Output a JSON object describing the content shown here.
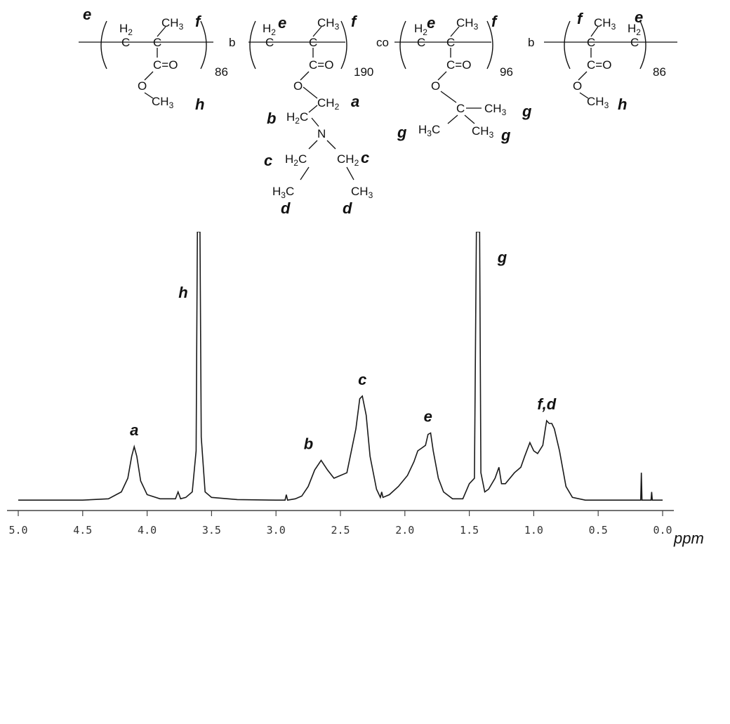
{
  "structure": {
    "link_labels": [
      "b",
      "co",
      "b"
    ],
    "degrees": [
      "86",
      "190",
      "96",
      "86"
    ],
    "atoms": {
      "h2": "H",
      "h2_sub": "2",
      "ch3": "CH",
      "ch3_sub": "3",
      "c": "C",
      "o": "O",
      "n": "N",
      "co_dbl": "C=O",
      "ch2": "CH",
      "ch2_sub": "2",
      "h3c": "H",
      "h3c_sub": "3",
      "h3c_c": "C",
      "h2c": "H",
      "h2c_sub": "2",
      "h2c_c": "C"
    },
    "proton_labels": {
      "a": "a",
      "b": "b",
      "c": "c",
      "d": "d",
      "e": "e",
      "f": "f",
      "g": "g",
      "h": "h"
    }
  },
  "chart_data": {
    "type": "line",
    "x_axis": {
      "range": [
        5.0,
        0.0
      ],
      "reversed": true,
      "tick_values": [
        5.0,
        4.5,
        4.0,
        3.5,
        3.0,
        2.5,
        2.0,
        1.5,
        1.0,
        0.5,
        0.0
      ],
      "tick_labels": [
        "5.0",
        "4.5",
        "4.0",
        "3.5",
        "3.0",
        "2.5",
        "2.0",
        "1.5",
        "1.0",
        "0.5",
        "0.0"
      ],
      "unit_label": "ppm"
    },
    "grid": false,
    "peak_labels": [
      {
        "text": "a",
        "ppm": 4.1
      },
      {
        "text": "h",
        "ppm": 3.6
      },
      {
        "text": "b",
        "ppm": 2.65
      },
      {
        "text": "c",
        "ppm": 2.33
      },
      {
        "text": "e",
        "ppm": 1.82
      },
      {
        "text": "g",
        "ppm": 1.43
      },
      {
        "text": "f,d",
        "ppm": 0.9
      }
    ],
    "series": [
      {
        "points": [
          [
            5.0,
            0.02
          ],
          [
            4.8,
            0.02
          ],
          [
            4.5,
            0.02
          ],
          [
            4.3,
            0.025
          ],
          [
            4.2,
            0.05
          ],
          [
            4.15,
            0.1
          ],
          [
            4.12,
            0.18
          ],
          [
            4.1,
            0.215
          ],
          [
            4.08,
            0.18
          ],
          [
            4.05,
            0.09
          ],
          [
            4.0,
            0.04
          ],
          [
            3.9,
            0.025
          ],
          [
            3.78,
            0.025
          ],
          [
            3.76,
            0.05
          ],
          [
            3.74,
            0.025
          ],
          [
            3.7,
            0.03
          ],
          [
            3.65,
            0.05
          ],
          [
            3.62,
            0.2
          ],
          [
            3.61,
            1.0
          ],
          [
            3.6,
            1.0
          ],
          [
            3.59,
            1.0
          ],
          [
            3.58,
            0.25
          ],
          [
            3.55,
            0.05
          ],
          [
            3.5,
            0.03
          ],
          [
            3.3,
            0.022
          ],
          [
            3.0,
            0.02
          ],
          [
            2.93,
            0.02
          ],
          [
            2.92,
            0.04
          ],
          [
            2.91,
            0.02
          ],
          [
            2.85,
            0.025
          ],
          [
            2.8,
            0.035
          ],
          [
            2.75,
            0.07
          ],
          [
            2.7,
            0.13
          ],
          [
            2.65,
            0.165
          ],
          [
            2.6,
            0.13
          ],
          [
            2.55,
            0.1
          ],
          [
            2.45,
            0.12
          ],
          [
            2.38,
            0.28
          ],
          [
            2.35,
            0.39
          ],
          [
            2.33,
            0.4
          ],
          [
            2.3,
            0.33
          ],
          [
            2.27,
            0.18
          ],
          [
            2.22,
            0.06
          ],
          [
            2.19,
            0.03
          ],
          [
            2.18,
            0.05
          ],
          [
            2.17,
            0.03
          ],
          [
            2.12,
            0.04
          ],
          [
            2.05,
            0.07
          ],
          [
            1.98,
            0.11
          ],
          [
            1.93,
            0.16
          ],
          [
            1.9,
            0.2
          ],
          [
            1.87,
            0.21
          ],
          [
            1.84,
            0.22
          ],
          [
            1.82,
            0.26
          ],
          [
            1.8,
            0.265
          ],
          [
            1.78,
            0.2
          ],
          [
            1.74,
            0.1
          ],
          [
            1.7,
            0.05
          ],
          [
            1.63,
            0.025
          ],
          [
            1.55,
            0.025
          ],
          [
            1.5,
            0.08
          ],
          [
            1.46,
            0.1
          ],
          [
            1.445,
            1.0
          ],
          [
            1.43,
            1.0
          ],
          [
            1.42,
            1.0
          ],
          [
            1.41,
            0.12
          ],
          [
            1.38,
            0.05
          ],
          [
            1.35,
            0.06
          ],
          [
            1.3,
            0.1
          ],
          [
            1.27,
            0.14
          ],
          [
            1.25,
            0.08
          ],
          [
            1.22,
            0.08
          ],
          [
            1.15,
            0.12
          ],
          [
            1.1,
            0.14
          ],
          [
            1.07,
            0.18
          ],
          [
            1.03,
            0.23
          ],
          [
            1.0,
            0.2
          ],
          [
            0.97,
            0.19
          ],
          [
            0.93,
            0.22
          ],
          [
            0.91,
            0.28
          ],
          [
            0.9,
            0.31
          ],
          [
            0.88,
            0.3
          ],
          [
            0.86,
            0.3
          ],
          [
            0.84,
            0.28
          ],
          [
            0.8,
            0.2
          ],
          [
            0.75,
            0.07
          ],
          [
            0.7,
            0.03
          ],
          [
            0.6,
            0.02
          ],
          [
            0.3,
            0.02
          ],
          [
            0.2,
            0.02
          ],
          [
            0.17,
            0.02
          ],
          [
            0.165,
            0.12
          ],
          [
            0.16,
            0.02
          ],
          [
            0.09,
            0.02
          ],
          [
            0.085,
            0.05
          ],
          [
            0.08,
            0.02
          ],
          [
            0.0,
            0.02
          ]
        ]
      }
    ]
  }
}
